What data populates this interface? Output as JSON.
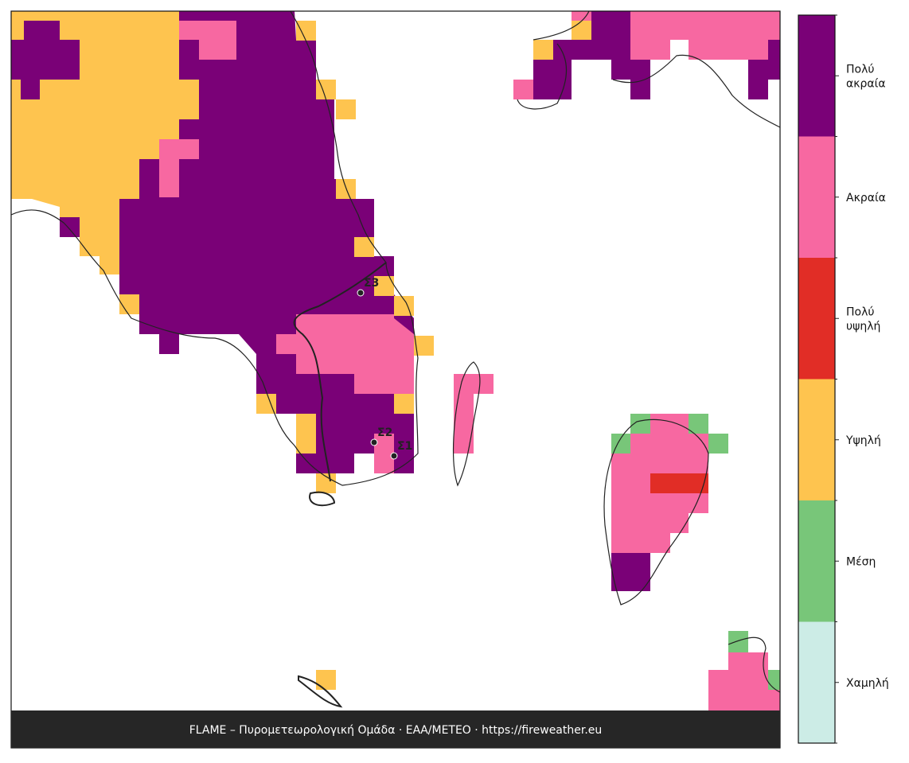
{
  "legend": {
    "classes": [
      {
        "lines": [
          "Πολύ",
          "ακραία"
        ],
        "color": "#7a0177"
      },
      {
        "lines": [
          "Ακραία"
        ],
        "color": "#f768a1"
      },
      {
        "lines": [
          "Πολύ",
          "υψηλή"
        ],
        "color": "#e12d26"
      },
      {
        "lines": [
          "Υψηλή"
        ],
        "color": "#fec44f"
      },
      {
        "lines": [
          "Μέση"
        ],
        "color": "#78c679"
      },
      {
        "lines": [
          "Χαμηλή"
        ],
        "color": "#ccece6"
      }
    ]
  },
  "markers": [
    {
      "label": "Σ3"
    },
    {
      "label": "Σ2"
    },
    {
      "label": "Σ1"
    }
  ],
  "footer": "FLAME – Πυρομετεωρολογική Ομάδα · ΕΑΑ/METEO · https://fireweather.eu"
}
